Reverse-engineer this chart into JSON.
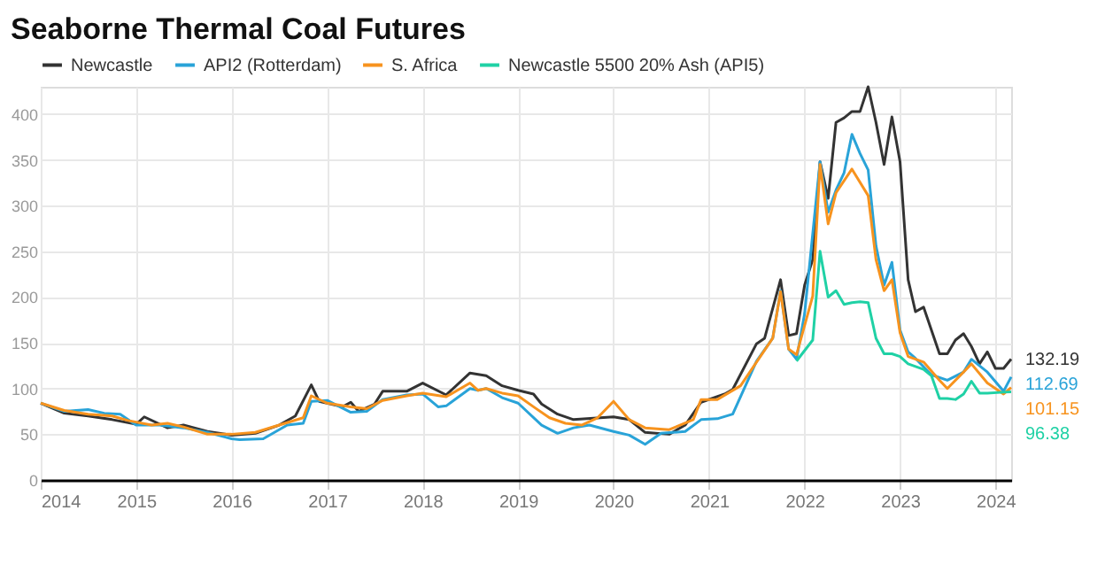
{
  "chart_data": {
    "type": "line",
    "title": "Seaborne Thermal Coal Futures",
    "xlim": [
      "2014-01",
      "2024-03"
    ],
    "xticks": [
      "2014",
      "2015",
      "2016",
      "2017",
      "2018",
      "2019",
      "2020",
      "2021",
      "2022",
      "2023",
      "2024"
    ],
    "ylim": [
      0,
      430
    ],
    "yticks": [
      0,
      50,
      100,
      150,
      200,
      250,
      300,
      350,
      400
    ],
    "grid": true,
    "legend": "top left",
    "series": [
      {
        "name": "Newcastle",
        "color": "#333333",
        "x": [
          "2014-01",
          "2014-04",
          "2014-07",
          "2014-10",
          "2015-01",
          "2015-02",
          "2015-05",
          "2015-07",
          "2015-10",
          "2016-01",
          "2016-04",
          "2016-07",
          "2016-09",
          "2016-11",
          "2016-12",
          "2017-03",
          "2017-04",
          "2017-05",
          "2017-07",
          "2017-08",
          "2017-11",
          "2018-01",
          "2018-04",
          "2018-07",
          "2018-09",
          "2018-11",
          "2019-01",
          "2019-03",
          "2019-04",
          "2019-06",
          "2019-08",
          "2020-01",
          "2020-03",
          "2020-05",
          "2020-08",
          "2020-10",
          "2020-12",
          "2021-03",
          "2021-04",
          "2021-07",
          "2021-08",
          "2021-10",
          "2021-11",
          "2021-12",
          "2022-01",
          "2022-02",
          "2022-03",
          "2022-04",
          "2022-05",
          "2022-06",
          "2022-07",
          "2022-08",
          "2022-09",
          "2022-10",
          "2022-11",
          "2022-12",
          "2023-01",
          "2023-02",
          "2023-03",
          "2023-04",
          "2023-06",
          "2023-07",
          "2023-08",
          "2023-09",
          "2023-10",
          "2023-11",
          "2023-12",
          "2024-01",
          "2024-02",
          "2024-03"
        ],
        "values": [
          84,
          73,
          70,
          66,
          61,
          69,
          57,
          60,
          53,
          49,
          51,
          60,
          70,
          104,
          86,
          80,
          85,
          75,
          83,
          97,
          97,
          106,
          93,
          117,
          114,
          103,
          98,
          94,
          83,
          72,
          66,
          69,
          66,
          52,
          50,
          60,
          85,
          94,
          99,
          149,
          155,
          219,
          158,
          160,
          213,
          241,
          348,
          308,
          391,
          396,
          403,
          403,
          430,
          391,
          345,
          397,
          348,
          219,
          184,
          189,
          138,
          138,
          153,
          160,
          146,
          127,
          140,
          122,
          122,
          132.19
        ]
      },
      {
        "name": "API2 (Rotterdam)",
        "color": "#29a3d8",
        "x": [
          "2014-01",
          "2014-04",
          "2014-07",
          "2014-09",
          "2014-11",
          "2015-01",
          "2015-04",
          "2015-07",
          "2015-10",
          "2016-01",
          "2016-02",
          "2016-05",
          "2016-08",
          "2016-10",
          "2016-11",
          "2017-01",
          "2017-04",
          "2017-06",
          "2017-08",
          "2017-11",
          "2018-01",
          "2018-03",
          "2018-04",
          "2018-07",
          "2018-08",
          "2018-09",
          "2018-11",
          "2019-01",
          "2019-04",
          "2019-06",
          "2019-08",
          "2019-10",
          "2020-01",
          "2020-03",
          "2020-05",
          "2020-07",
          "2020-10",
          "2020-12",
          "2021-02",
          "2021-04",
          "2021-07",
          "2021-09",
          "2021-10",
          "2021-11",
          "2021-12",
          "2022-01",
          "2022-03",
          "2022-04",
          "2022-05",
          "2022-06",
          "2022-07",
          "2022-08",
          "2022-09",
          "2022-10",
          "2022-11",
          "2022-12",
          "2023-01",
          "2023-02",
          "2023-03",
          "2023-05",
          "2023-07",
          "2023-09",
          "2023-10",
          "2023-12",
          "2024-02",
          "2024-03"
        ],
        "values": [
          84,
          75,
          77,
          73,
          72,
          60,
          60,
          57,
          52,
          45,
          44,
          45,
          60,
          62,
          86,
          87,
          74,
          75,
          88,
          93,
          94,
          80,
          81,
          100,
          98,
          100,
          90,
          84,
          60,
          51,
          57,
          60,
          53,
          49,
          39,
          51,
          53,
          66,
          67,
          72,
          130,
          155,
          207,
          143,
          132,
          182,
          348,
          293,
          317,
          336,
          378,
          357,
          339,
          256,
          213,
          238,
          164,
          140,
          133,
          115,
          109,
          118,
          132,
          118,
          97,
          112.69
        ]
      },
      {
        "name": "S. Africa",
        "color": "#f7931e",
        "x": [
          "2014-01",
          "2014-04",
          "2014-07",
          "2014-10",
          "2014-12",
          "2015-03",
          "2015-05",
          "2015-07",
          "2015-10",
          "2016-01",
          "2016-04",
          "2016-07",
          "2016-10",
          "2016-11",
          "2017-01",
          "2017-04",
          "2017-06",
          "2017-08",
          "2017-11",
          "2018-01",
          "2018-04",
          "2018-07",
          "2018-08",
          "2018-09",
          "2018-11",
          "2019-01",
          "2019-03",
          "2019-05",
          "2019-07",
          "2019-09",
          "2019-11",
          "2020-01",
          "2020-03",
          "2020-05",
          "2020-08",
          "2020-11",
          "2020-12",
          "2021-02",
          "2021-05",
          "2021-09",
          "2021-10",
          "2021-11",
          "2021-12",
          "2022-02",
          "2022-03",
          "2022-04",
          "2022-05",
          "2022-07",
          "2022-09",
          "2022-10",
          "2022-11",
          "2022-12",
          "2023-01",
          "2023-02",
          "2023-04",
          "2023-06",
          "2023-07",
          "2023-09",
          "2023-10",
          "2023-12",
          "2024-02",
          "2024-03"
        ],
        "values": [
          84,
          76,
          72,
          70,
          65,
          60,
          62,
          58,
          50,
          50,
          52,
          60,
          68,
          92,
          84,
          80,
          78,
          87,
          92,
          95,
          91,
          106,
          98,
          100,
          95,
          92,
          80,
          68,
          62,
          60,
          68,
          86,
          66,
          57,
          55,
          66,
          88,
          88,
          103,
          155,
          206,
          143,
          137,
          201,
          345,
          280,
          314,
          340,
          311,
          241,
          207,
          219,
          161,
          135,
          129,
          109,
          100,
          118,
          127,
          106,
          94,
          101.15
        ]
      },
      {
        "name": "Newcastle 5500 20% Ash (API5)",
        "color": "#1fd1a5",
        "x": [
          "2021-12",
          "2022-02",
          "2022-03",
          "2022-04",
          "2022-05",
          "2022-06",
          "2022-07",
          "2022-08",
          "2022-09",
          "2022-10",
          "2022-11",
          "2022-12",
          "2023-01",
          "2023-02",
          "2023-04",
          "2023-05",
          "2023-06",
          "2023-07",
          "2023-08",
          "2023-09",
          "2023-10",
          "2023-11",
          "2023-12",
          "2024-02",
          "2024-03"
        ],
        "values": [
          130,
          153,
          250,
          200,
          207,
          192,
          194,
          195,
          194,
          155,
          138,
          138,
          135,
          127,
          121,
          114,
          89,
          89,
          88,
          94,
          108,
          95,
          95,
          96,
          96.38
        ]
      }
    ],
    "annotations": [
      {
        "text": "132.19",
        "x": "2024-03",
        "y": 132.19
      },
      {
        "text": "112.69",
        "x": "2024-03",
        "y": 112.69
      },
      {
        "text": "101.15",
        "x": "2024-03",
        "y": 101.15
      },
      {
        "text": "96.38",
        "x": "2024-03",
        "y": 96.38
      }
    ]
  }
}
